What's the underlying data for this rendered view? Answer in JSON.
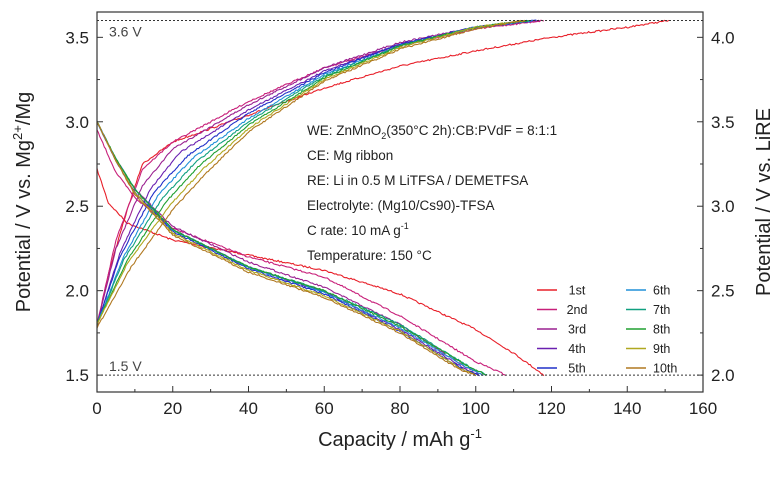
{
  "chart_data": {
    "type": "line",
    "xlabel": "Capacity / mAh g",
    "xlabel_sup": "-1",
    "ylabel_left_parts": [
      "Potential / V vs. Mg",
      "2+",
      "/Mg"
    ],
    "ylabel_right": "Potential / V vs. LiRE",
    "xlim": [
      0,
      160
    ],
    "ylim_left": [
      1.4,
      3.65
    ],
    "ylim_right_offset": 0.5,
    "x_ticks": [
      0,
      20,
      40,
      60,
      80,
      100,
      120,
      140,
      160
    ],
    "y_left_ticks": [
      1.5,
      2.0,
      2.5,
      3.0,
      3.5
    ],
    "y_right_ticks": [
      2.0,
      2.5,
      3.0,
      3.5,
      4.0
    ],
    "x_tick_labels": [
      "0",
      "20",
      "40",
      "60",
      "80",
      "100",
      "120",
      "140",
      "160"
    ],
    "y_left_tick_labels": [
      "1.5",
      "2.0",
      "2.5",
      "3.0",
      "3.5"
    ],
    "y_right_tick_labels": [
      "2.0",
      "2.5",
      "3.0",
      "3.5",
      "4.0"
    ],
    "grid": false,
    "reference_lines": [
      {
        "y": 3.6,
        "label": "3.6 V"
      },
      {
        "y": 1.5,
        "label": "1.5 V"
      }
    ],
    "annotations": [
      {
        "parts": [
          "WE: ZnMnO",
          "2",
          "(350°C 2h):CB:PVdF = 8:1:1"
        ]
      },
      {
        "parts": [
          "CE: Mg ribbon"
        ]
      },
      {
        "parts": [
          "RE: Li in 0.5 M LiTFSA / DEMETFSA"
        ]
      },
      {
        "parts": [
          "Electrolyte: (Mg10/Cs90)-TFSA"
        ]
      },
      {
        "parts": [
          "C rate: 10 mA g",
          "-1"
        ]
      },
      {
        "parts": [
          "Temperature: 150 °C"
        ]
      }
    ],
    "legend_position": "bottom-right",
    "series": [
      {
        "name": "1st",
        "color": "#e8202a",
        "discharge": [
          [
            0,
            2.72
          ],
          [
            3,
            2.52
          ],
          [
            8,
            2.4
          ],
          [
            20,
            2.3
          ],
          [
            40,
            2.21
          ],
          [
            60,
            2.12
          ],
          [
            80,
            1.98
          ],
          [
            100,
            1.77
          ],
          [
            110,
            1.63
          ],
          [
            118,
            1.5
          ]
        ],
        "charge": [
          [
            0,
            1.78
          ],
          [
            3,
            2.1
          ],
          [
            8,
            2.48
          ],
          [
            12,
            2.75
          ],
          [
            20,
            2.88
          ],
          [
            40,
            3.04
          ],
          [
            60,
            3.2
          ],
          [
            80,
            3.33
          ],
          [
            100,
            3.42
          ],
          [
            120,
            3.5
          ],
          [
            140,
            3.56
          ],
          [
            151,
            3.6
          ]
        ]
      },
      {
        "name": "2nd",
        "color": "#c8207a",
        "discharge": [
          [
            0,
            2.95
          ],
          [
            5,
            2.7
          ],
          [
            10,
            2.55
          ],
          [
            20,
            2.37
          ],
          [
            40,
            2.2
          ],
          [
            60,
            2.08
          ],
          [
            80,
            1.85
          ],
          [
            100,
            1.58
          ],
          [
            108,
            1.5
          ]
        ],
        "charge": [
          [
            0,
            1.8
          ],
          [
            5,
            2.3
          ],
          [
            12,
            2.72
          ],
          [
            20,
            2.88
          ],
          [
            40,
            3.12
          ],
          [
            60,
            3.32
          ],
          [
            80,
            3.45
          ],
          [
            100,
            3.55
          ],
          [
            118,
            3.6
          ]
        ]
      },
      {
        "name": "3rd",
        "color": "#9a2090",
        "discharge": [
          [
            0,
            3.0
          ],
          [
            5,
            2.78
          ],
          [
            10,
            2.6
          ],
          [
            20,
            2.38
          ],
          [
            40,
            2.17
          ],
          [
            60,
            2.02
          ],
          [
            80,
            1.8
          ],
          [
            97,
            1.55
          ],
          [
            102,
            1.5
          ]
        ],
        "charge": [
          [
            0,
            1.8
          ],
          [
            5,
            2.25
          ],
          [
            12,
            2.62
          ],
          [
            20,
            2.84
          ],
          [
            40,
            3.1
          ],
          [
            60,
            3.32
          ],
          [
            80,
            3.47
          ],
          [
            100,
            3.56
          ],
          [
            117,
            3.6
          ]
        ]
      },
      {
        "name": "4th",
        "color": "#6a20b0",
        "discharge": [
          [
            0,
            3.0
          ],
          [
            5,
            2.77
          ],
          [
            10,
            2.58
          ],
          [
            20,
            2.36
          ],
          [
            40,
            2.14
          ],
          [
            60,
            1.99
          ],
          [
            80,
            1.77
          ],
          [
            97,
            1.54
          ],
          [
            101,
            1.5
          ]
        ],
        "charge": [
          [
            0,
            1.8
          ],
          [
            6,
            2.22
          ],
          [
            14,
            2.6
          ],
          [
            22,
            2.82
          ],
          [
            40,
            3.07
          ],
          [
            60,
            3.3
          ],
          [
            80,
            3.46
          ],
          [
            100,
            3.56
          ],
          [
            116,
            3.6
          ]
        ]
      },
      {
        "name": "5th",
        "color": "#2030c8",
        "discharge": [
          [
            0,
            3.0
          ],
          [
            5,
            2.77
          ],
          [
            10,
            2.58
          ],
          [
            20,
            2.35
          ],
          [
            40,
            2.13
          ],
          [
            60,
            1.98
          ],
          [
            80,
            1.76
          ],
          [
            97,
            1.53
          ],
          [
            101,
            1.5
          ]
        ],
        "charge": [
          [
            0,
            1.8
          ],
          [
            6,
            2.2
          ],
          [
            15,
            2.58
          ],
          [
            24,
            2.8
          ],
          [
            40,
            3.05
          ],
          [
            60,
            3.29
          ],
          [
            80,
            3.46
          ],
          [
            100,
            3.56
          ],
          [
            116,
            3.6
          ]
        ]
      },
      {
        "name": "6th",
        "color": "#2090d8",
        "discharge": [
          [
            0,
            3.0
          ],
          [
            5,
            2.78
          ],
          [
            10,
            2.6
          ],
          [
            20,
            2.36
          ],
          [
            40,
            2.14
          ],
          [
            60,
            1.99
          ],
          [
            80,
            1.78
          ],
          [
            98,
            1.54
          ],
          [
            102,
            1.5
          ]
        ],
        "charge": [
          [
            0,
            1.8
          ],
          [
            7,
            2.2
          ],
          [
            16,
            2.56
          ],
          [
            25,
            2.78
          ],
          [
            40,
            3.02
          ],
          [
            60,
            3.28
          ],
          [
            80,
            3.45
          ],
          [
            100,
            3.56
          ],
          [
            115,
            3.6
          ]
        ]
      },
      {
        "name": "7th",
        "color": "#10a080",
        "discharge": [
          [
            0,
            3.0
          ],
          [
            5,
            2.78
          ],
          [
            10,
            2.6
          ],
          [
            20,
            2.36
          ],
          [
            40,
            2.14
          ],
          [
            60,
            2.0
          ],
          [
            80,
            1.8
          ],
          [
            99,
            1.54
          ],
          [
            103,
            1.5
          ]
        ],
        "charge": [
          [
            0,
            1.8
          ],
          [
            7,
            2.18
          ],
          [
            17,
            2.54
          ],
          [
            26,
            2.76
          ],
          [
            40,
            3.0
          ],
          [
            60,
            3.27
          ],
          [
            80,
            3.45
          ],
          [
            100,
            3.56
          ],
          [
            114,
            3.6
          ]
        ]
      },
      {
        "name": "8th",
        "color": "#20a030",
        "discharge": [
          [
            0,
            3.0
          ],
          [
            5,
            2.78
          ],
          [
            10,
            2.6
          ],
          [
            20,
            2.36
          ],
          [
            40,
            2.14
          ],
          [
            60,
            2.0
          ],
          [
            80,
            1.79
          ],
          [
            99,
            1.54
          ],
          [
            103,
            1.5
          ]
        ],
        "charge": [
          [
            0,
            1.8
          ],
          [
            8,
            2.18
          ],
          [
            18,
            2.52
          ],
          [
            27,
            2.74
          ],
          [
            40,
            2.98
          ],
          [
            60,
            3.26
          ],
          [
            80,
            3.45
          ],
          [
            100,
            3.56
          ],
          [
            114,
            3.6
          ]
        ]
      },
      {
        "name": "9th",
        "color": "#b0a820",
        "discharge": [
          [
            0,
            3.0
          ],
          [
            5,
            2.77
          ],
          [
            10,
            2.58
          ],
          [
            20,
            2.34
          ],
          [
            40,
            2.12
          ],
          [
            60,
            1.97
          ],
          [
            80,
            1.76
          ],
          [
            96,
            1.54
          ],
          [
            100,
            1.5
          ]
        ],
        "charge": [
          [
            0,
            1.8
          ],
          [
            8,
            2.16
          ],
          [
            19,
            2.5
          ],
          [
            28,
            2.72
          ],
          [
            40,
            2.96
          ],
          [
            60,
            3.25
          ],
          [
            80,
            3.44
          ],
          [
            100,
            3.56
          ],
          [
            113,
            3.6
          ]
        ]
      },
      {
        "name": "10th",
        "color": "#b07820",
        "discharge": [
          [
            0,
            3.0
          ],
          [
            5,
            2.77
          ],
          [
            10,
            2.57
          ],
          [
            20,
            2.33
          ],
          [
            40,
            2.11
          ],
          [
            60,
            1.96
          ],
          [
            80,
            1.75
          ],
          [
            96,
            1.53
          ],
          [
            100,
            1.5
          ]
        ],
        "charge": [
          [
            0,
            1.78
          ],
          [
            9,
            2.14
          ],
          [
            20,
            2.48
          ],
          [
            29,
            2.7
          ],
          [
            40,
            2.94
          ],
          [
            60,
            3.24
          ],
          [
            80,
            3.43
          ],
          [
            100,
            3.55
          ],
          [
            113,
            3.6
          ]
        ]
      }
    ]
  }
}
